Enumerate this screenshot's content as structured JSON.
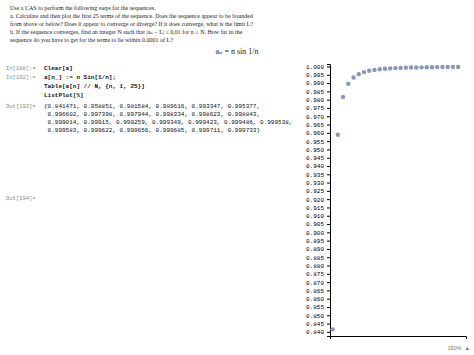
{
  "chart_data": {
    "type": "scatter",
    "annotations": [
      "Use a CAS to perform the following steps for the sequences.",
      "a. Calculate and then plot the first 25 terms of the sequence. Does the sequence appear to be bounded",
      "from above or below? Does it appear to converge or diverge? If it does converge, what is the limit L?",
      "b. If the sequence converges, find an integer N such that |aₙ − L| ≤ 0.01 for n ≥ N. How far in the",
      "sequence do you have to get for the terms to lie within 0.0001 of L?",
      "aₙ = n sin 1/n",
      "In[188]:=",
      "Clear[a]",
      "In[192]:=",
      "a[n_] := n Sin[1/n];",
      "Table[a[n] // N, {n, 1, 25}]",
      "ListPlot[%]",
      "Out[193]=",
      "{0.841471, 0.958851, 0.981584, 0.989616, 0.993347, 0.995377,",
      " 0.996602, 0.997398, 0.997944, 0.998334, 0.998623, 0.998843,",
      " 0.999014, 0.99915, 0.999259, 0.999349, 0.999423, 0.999486, 0.999538,",
      " 0.999583, 0.999622, 0.999656, 0.999685, 0.999711, 0.999733}",
      "Out[194]=",
      "150%  ▲"
    ],
    "x": [
      1,
      2,
      3,
      4,
      5,
      6,
      7,
      8,
      9,
      10,
      11,
      12,
      13,
      14,
      15,
      16,
      17,
      18,
      19,
      20,
      21,
      22,
      23,
      24,
      25
    ],
    "values": [
      0.841471,
      0.958851,
      0.981584,
      0.989616,
      0.993347,
      0.995377,
      0.996602,
      0.997398,
      0.997944,
      0.998334,
      0.998623,
      0.998843,
      0.999014,
      0.99915,
      0.999259,
      0.999349,
      0.999423,
      0.999486,
      0.999538,
      0.999583,
      0.999622,
      0.999656,
      0.999685,
      0.999711,
      0.999733
    ],
    "color": "#8896b8",
    "xlim": [
      0.5,
      26.5
    ],
    "ylim": [
      0.8375,
      1.0015
    ],
    "yticks": [
      {
        "value": 0.84,
        "label": "0.840"
      },
      0.845,
      {
        "value": 0.85,
        "label": "0.850"
      },
      0.855,
      {
        "value": 0.86,
        "label": "0.860"
      },
      0.865,
      {
        "value": 0.87,
        "label": "0.870"
      },
      0.875,
      {
        "value": 0.88,
        "label": "0.880"
      },
      0.885,
      {
        "value": 0.89,
        "label": "0.890"
      },
      0.895,
      {
        "value": 0.9,
        "label": "0.900"
      },
      0.905,
      {
        "value": 0.91,
        "label": "0.910"
      },
      0.915,
      {
        "value": 0.92,
        "label": "0.920"
      },
      0.925,
      {
        "value": 0.93,
        "label": "0.930"
      },
      0.935,
      {
        "value": 0.94,
        "label": "0.940"
      },
      0.945,
      {
        "value": 0.95,
        "label": "0.950"
      },
      0.955,
      {
        "value": 0.96,
        "label": "0.960"
      },
      0.965,
      {
        "value": 0.97,
        "label": "0.970"
      },
      0.975,
      {
        "value": 0.98,
        "label": "0.980"
      },
      0.985,
      {
        "value": 0.99,
        "label": "0.990"
      },
      0.995,
      {
        "value": 1.0,
        "label": "1.000"
      }
    ],
    "tick_labels": "y"
  }
}
